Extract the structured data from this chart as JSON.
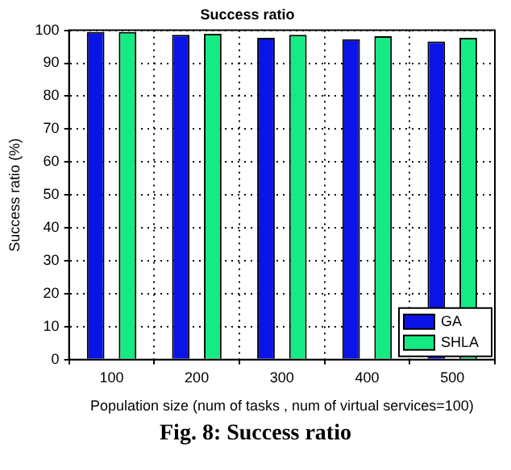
{
  "chart_data": {
    "type": "bar",
    "title": "Success ratio",
    "xlabel": "Population size (num of tasks , num of virtual services=100)",
    "ylabel": "Success ratio (%)",
    "categories": [
      "100",
      "200",
      "300",
      "400",
      "500"
    ],
    "series": [
      {
        "name": "GA",
        "color": "#0a14e6",
        "values": [
          99.5,
          98.6,
          97.7,
          97.3,
          96.6
        ]
      },
      {
        "name": "SHLA",
        "color": "#14eb82",
        "values": [
          99.5,
          98.9,
          98.6,
          98.2,
          97.7
        ]
      }
    ],
    "ylim": [
      0,
      100
    ],
    "yticks": [
      0,
      10,
      20,
      30,
      40,
      50,
      60,
      70,
      80,
      90,
      100
    ],
    "grid": true,
    "legend": "bottom right",
    "annotations": [
      "Fig. 8: Success ratio"
    ]
  }
}
